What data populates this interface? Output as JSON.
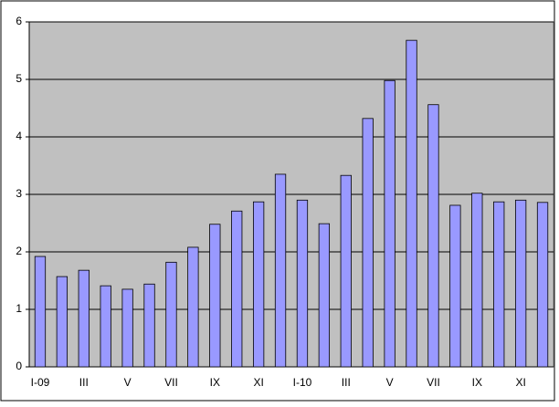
{
  "chart_data": {
    "type": "bar",
    "categories": [
      "I-09",
      null,
      "III",
      null,
      "V",
      null,
      "VII",
      null,
      "IX",
      null,
      "XI",
      null,
      "I-10",
      null,
      "III",
      null,
      "V",
      null,
      "VII",
      null,
      "IX",
      null,
      "XI",
      null
    ],
    "values": [
      1.92,
      1.57,
      1.68,
      1.41,
      1.35,
      1.44,
      1.82,
      2.08,
      2.48,
      2.71,
      2.87,
      3.35,
      2.9,
      2.49,
      3.33,
      4.32,
      4.98,
      5.68,
      4.56,
      2.81,
      3.02,
      2.87,
      2.9,
      2.86
    ],
    "color": "#9999ff",
    "ylim": [
      0,
      6
    ],
    "yticks": [
      0,
      1,
      2,
      3,
      4,
      5,
      6
    ],
    "grid": true
  }
}
